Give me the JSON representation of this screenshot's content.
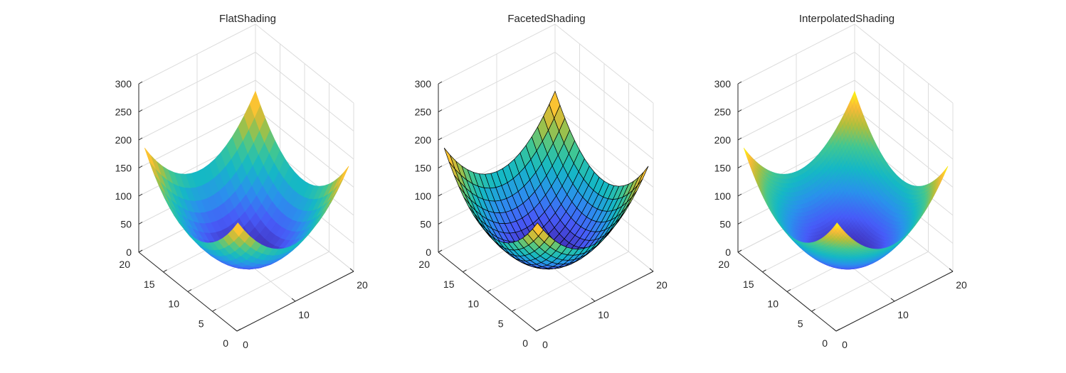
{
  "chart_data": [
    {
      "type": "surface",
      "title": "FlatShading",
      "shading": "flat",
      "function": "z = (x-10.5)^2 + (y-10.5)^2",
      "x_range": [
        1,
        20
      ],
      "y_range": [
        1,
        20
      ],
      "grid_points": 20,
      "xlim": [
        0,
        20
      ],
      "ylim": [
        0,
        20
      ],
      "zlim": [
        0,
        300
      ],
      "xticks": [
        "0",
        "10",
        "20"
      ],
      "yticks": [
        "0",
        "5",
        "10",
        "15",
        "20"
      ],
      "zticks": [
        "0",
        "50",
        "100",
        "150",
        "200",
        "250",
        "300"
      ],
      "colormap": "parula",
      "edges": false,
      "grid": true
    },
    {
      "type": "surface",
      "title": "FacetedShading",
      "shading": "faceted",
      "function": "z = (x-10.5)^2 + (y-10.5)^2",
      "x_range": [
        1,
        20
      ],
      "y_range": [
        1,
        20
      ],
      "grid_points": 20,
      "xlim": [
        0,
        20
      ],
      "ylim": [
        0,
        20
      ],
      "zlim": [
        0,
        300
      ],
      "xticks": [
        "0",
        "10",
        "20"
      ],
      "yticks": [
        "0",
        "5",
        "10",
        "15",
        "20"
      ],
      "zticks": [
        "0",
        "50",
        "100",
        "150",
        "200",
        "250",
        "300"
      ],
      "colormap": "parula",
      "edges": true,
      "edge_color": "#000000",
      "grid": true
    },
    {
      "type": "surface",
      "title": "InterpolatedShading",
      "shading": "interp",
      "function": "z = (x-10.5)^2 + (y-10.5)^2",
      "x_range": [
        1,
        20
      ],
      "y_range": [
        1,
        20
      ],
      "grid_points": 20,
      "xlim": [
        0,
        20
      ],
      "ylim": [
        0,
        20
      ],
      "zlim": [
        0,
        300
      ],
      "xticks": [
        "0",
        "10",
        "20"
      ],
      "yticks": [
        "0",
        "5",
        "10",
        "15",
        "20"
      ],
      "zticks": [
        "0",
        "50",
        "100",
        "150",
        "200",
        "250",
        "300"
      ],
      "colormap": "parula",
      "edges": false,
      "grid": true
    }
  ],
  "colors": {
    "background": "#ffffff",
    "axis": "#262626",
    "grid": "#dcdcdc",
    "parula_low": "#3e26a8",
    "parula_mid": "#15b8c5",
    "parula_high": "#f9fb0e"
  }
}
